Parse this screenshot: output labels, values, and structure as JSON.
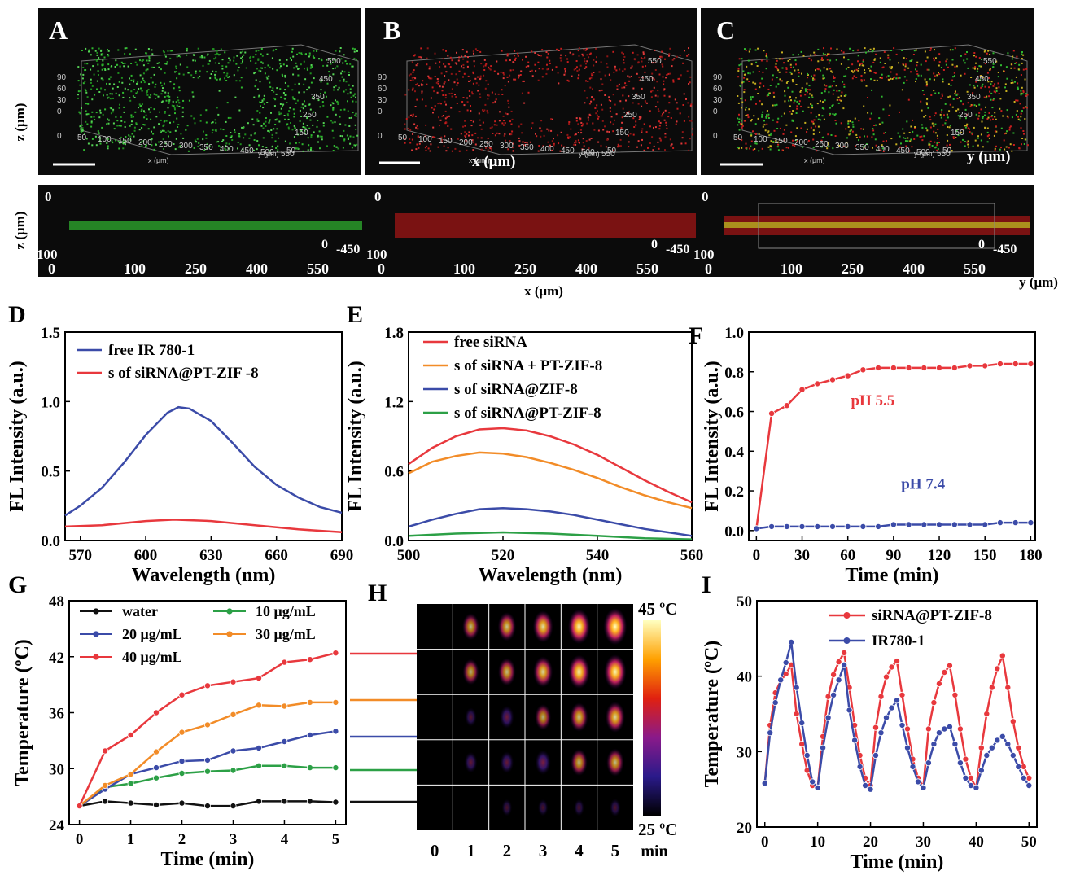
{
  "panels": {
    "A": {
      "letter": "A"
    },
    "B": {
      "letter": "B",
      "xaxis_label": "x (μm)"
    },
    "C": {
      "letter": "C",
      "yaxis_label": "y (μm)"
    },
    "top_row": {
      "z_label": "z (μm)",
      "z_ticks": [
        "90",
        "60",
        "30",
        "0"
      ],
      "x_ticks": [
        "0",
        "50",
        "100",
        "150",
        "200",
        "250",
        "300",
        "350",
        "400",
        "450",
        "500",
        "550"
      ],
      "y_ticks": [
        "50",
        "150",
        "250",
        "350",
        "450",
        "550"
      ],
      "x_unit": "x (μm)",
      "y_unit": "y (μm)"
    },
    "side_row": {
      "z_label": "z (μm)",
      "top_tick": "0",
      "bottom_tick": "100",
      "depth_tick": "0",
      "depth_end": "-450",
      "x_ticks": [
        "0",
        "100",
        "250",
        "400",
        "550"
      ],
      "x_label": "x (μm)",
      "y_label": "y (μm)"
    },
    "colorbar": {
      "max": "45 ºC",
      "min": "25 ºC"
    },
    "thermal_cols": [
      "0",
      "1",
      "2",
      "3",
      "4",
      "5"
    ],
    "thermal_unit": "min"
  },
  "colors": {
    "red": "#e8383d",
    "blue": "#3b4ba8",
    "orange": "#f28c28",
    "green": "#2ca046",
    "black": "#111111"
  },
  "chart_data": [
    {
      "id": "D",
      "type": "line",
      "letter": "D",
      "xlabel": "Wavelength (nm)",
      "ylabel": "FL Intensity (a.u.)",
      "xlim": [
        563,
        690
      ],
      "ylim": [
        0,
        1.5
      ],
      "xticks": [
        570,
        600,
        630,
        660,
        690
      ],
      "yticks": [
        0.0,
        0.5,
        1.0,
        1.5
      ],
      "series": [
        {
          "name": "free IR 780-1",
          "color": "#3b4ba8",
          "x": [
            563,
            570,
            580,
            590,
            600,
            610,
            615,
            620,
            630,
            640,
            650,
            660,
            670,
            680,
            690
          ],
          "y": [
            0.18,
            0.25,
            0.38,
            0.56,
            0.76,
            0.92,
            0.96,
            0.95,
            0.86,
            0.7,
            0.53,
            0.4,
            0.31,
            0.24,
            0.2
          ]
        },
        {
          "name": "s of siRNA@PT-ZIF -8",
          "color": "#e8383d",
          "x": [
            563,
            580,
            600,
            613,
            630,
            650,
            670,
            690
          ],
          "y": [
            0.1,
            0.11,
            0.14,
            0.15,
            0.14,
            0.11,
            0.08,
            0.06
          ]
        }
      ]
    },
    {
      "id": "E",
      "type": "line",
      "letter": "E",
      "xlabel": "Wavelength (nm)",
      "ylabel": "FL Intensity (a.u.)",
      "xlim": [
        500,
        560
      ],
      "ylim": [
        0,
        1.8
      ],
      "xticks": [
        500,
        520,
        540,
        560
      ],
      "yticks": [
        0.0,
        0.6,
        1.2,
        1.8
      ],
      "series": [
        {
          "name": "free siRNA",
          "color": "#e8383d",
          "x": [
            500,
            505,
            510,
            515,
            520,
            525,
            530,
            535,
            540,
            545,
            550,
            555,
            560
          ],
          "y": [
            0.66,
            0.8,
            0.9,
            0.96,
            0.97,
            0.95,
            0.9,
            0.83,
            0.74,
            0.63,
            0.52,
            0.42,
            0.33
          ]
        },
        {
          "name": "s of siRNA + PT-ZIF-8",
          "color": "#f28c28",
          "x": [
            500,
            505,
            510,
            515,
            520,
            525,
            530,
            535,
            540,
            545,
            550,
            555,
            560
          ],
          "y": [
            0.58,
            0.68,
            0.73,
            0.76,
            0.75,
            0.72,
            0.67,
            0.61,
            0.54,
            0.46,
            0.39,
            0.33,
            0.28
          ]
        },
        {
          "name": "s of siRNA@ZIF-8",
          "color": "#3b4ba8",
          "x": [
            500,
            505,
            510,
            515,
            520,
            525,
            530,
            535,
            540,
            545,
            550,
            555,
            560
          ],
          "y": [
            0.12,
            0.18,
            0.23,
            0.27,
            0.28,
            0.27,
            0.25,
            0.22,
            0.18,
            0.14,
            0.1,
            0.07,
            0.04
          ]
        },
        {
          "name": "s of siRNA@PT-ZIF-8",
          "color": "#2ca046",
          "x": [
            500,
            510,
            520,
            530,
            540,
            550,
            560
          ],
          "y": [
            0.04,
            0.06,
            0.07,
            0.06,
            0.04,
            0.02,
            0.01
          ]
        }
      ]
    },
    {
      "id": "F",
      "type": "line",
      "letter": "F",
      "xlabel": "Time (min)",
      "ylabel": "FL Intensity (a.u.)",
      "xlim": [
        -5,
        183
      ],
      "ylim": [
        -0.05,
        1.0
      ],
      "xticks": [
        0,
        30,
        60,
        90,
        120,
        150,
        180
      ],
      "yticks": [
        0.0,
        0.2,
        0.4,
        0.6,
        0.8,
        1.0
      ],
      "markers": true,
      "annotations": [
        {
          "text": "pH 5.5",
          "x": 62,
          "y": 0.63,
          "color": "#e8383d"
        },
        {
          "text": "pH 7.4",
          "x": 95,
          "y": 0.21,
          "color": "#3b4ba8"
        }
      ],
      "series": [
        {
          "name": "pH 5.5",
          "color": "#e8383d",
          "x": [
            0,
            10,
            20,
            30,
            40,
            50,
            60,
            70,
            80,
            90,
            100,
            110,
            120,
            130,
            140,
            150,
            160,
            170,
            180
          ],
          "y": [
            0.01,
            0.59,
            0.63,
            0.71,
            0.74,
            0.76,
            0.78,
            0.81,
            0.82,
            0.82,
            0.82,
            0.82,
            0.82,
            0.82,
            0.83,
            0.83,
            0.84,
            0.84,
            0.84
          ]
        },
        {
          "name": "pH 7.4",
          "color": "#3b4ba8",
          "x": [
            0,
            10,
            20,
            30,
            40,
            50,
            60,
            70,
            80,
            90,
            100,
            110,
            120,
            130,
            140,
            150,
            160,
            170,
            180
          ],
          "y": [
            0.01,
            0.02,
            0.02,
            0.02,
            0.02,
            0.02,
            0.02,
            0.02,
            0.02,
            0.03,
            0.03,
            0.03,
            0.03,
            0.03,
            0.03,
            0.03,
            0.04,
            0.04,
            0.04
          ]
        }
      ]
    },
    {
      "id": "G",
      "type": "line",
      "letter": "G",
      "xlabel": "Time (min)",
      "ylabel": "Temperature (ºC)",
      "xlim": [
        -0.2,
        5.2
      ],
      "ylim": [
        24,
        48
      ],
      "xticks": [
        0,
        1,
        2,
        3,
        4,
        5
      ],
      "yticks": [
        24,
        30,
        36,
        42,
        48
      ],
      "markers": true,
      "series": [
        {
          "name": "water",
          "color": "#111111",
          "x": [
            0,
            0.5,
            1,
            1.5,
            2,
            2.5,
            3,
            3.5,
            4,
            4.5,
            5
          ],
          "y": [
            26,
            26.5,
            26.3,
            26.1,
            26.3,
            26,
            26,
            26.5,
            26.5,
            26.5,
            26.4
          ]
        },
        {
          "name": "10 μg/mL",
          "color": "#2ca046",
          "x": [
            0,
            0.5,
            1,
            1.5,
            2,
            2.5,
            3,
            3.5,
            4,
            4.5,
            5
          ],
          "y": [
            26,
            28,
            28.4,
            29,
            29.5,
            29.7,
            29.8,
            30.3,
            30.3,
            30.1,
            30.1
          ]
        },
        {
          "name": "20 μg/mL",
          "color": "#3b4ba8",
          "x": [
            0,
            0.5,
            1,
            1.5,
            2,
            2.5,
            3,
            3.5,
            4,
            4.5,
            5
          ],
          "y": [
            26,
            27.8,
            29.4,
            30.1,
            30.8,
            30.9,
            31.9,
            32.2,
            32.9,
            33.6,
            34
          ]
        },
        {
          "name": "30 μg/mL",
          "color": "#f28c28",
          "x": [
            0,
            0.5,
            1,
            1.5,
            2,
            2.5,
            3,
            3.5,
            4,
            4.5,
            5
          ],
          "y": [
            26,
            28.2,
            29.4,
            31.8,
            33.9,
            34.7,
            35.8,
            36.8,
            36.7,
            37.1,
            37.1
          ]
        },
        {
          "name": "40 μg/mL",
          "color": "#e8383d",
          "x": [
            0,
            0.5,
            1,
            1.5,
            2,
            2.5,
            3,
            3.5,
            4,
            4.5,
            5
          ],
          "y": [
            26,
            31.9,
            33.6,
            36,
            37.9,
            38.9,
            39.3,
            39.7,
            41.4,
            41.7,
            42.4
          ]
        }
      ]
    },
    {
      "id": "I",
      "type": "line",
      "letter": "I",
      "xlabel": "Time (min)",
      "ylabel": "Temperature (ºC)",
      "xlim": [
        -1.5,
        51.5
      ],
      "ylim": [
        20,
        50
      ],
      "xticks": [
        0,
        10,
        20,
        30,
        40,
        50
      ],
      "yticks": [
        20,
        30,
        40,
        50
      ],
      "markers": true,
      "series": [
        {
          "name": "siRNA@PT-ZIF-8",
          "color": "#e8383d",
          "x": [
            0,
            1,
            2,
            3,
            4,
            5,
            6,
            7,
            8,
            9,
            10,
            11,
            12,
            13,
            14,
            15,
            16,
            17,
            18,
            19,
            20,
            21,
            22,
            23,
            24,
            25,
            26,
            27,
            28,
            29,
            30,
            31,
            32,
            33,
            34,
            35,
            36,
            37,
            38,
            39,
            40,
            41,
            42,
            43,
            44,
            45,
            46,
            47,
            48,
            49,
            50
          ],
          "y": [
            25.8,
            33.5,
            37.8,
            39.4,
            40.3,
            41.5,
            35,
            31,
            27.5,
            25.5,
            25.2,
            32,
            37.3,
            40.2,
            41.9,
            43.1,
            38.5,
            33.5,
            29.5,
            26.5,
            25.5,
            33.2,
            37.3,
            39.9,
            41.2,
            42,
            37.5,
            33,
            29,
            26.5,
            25.3,
            33,
            36.5,
            39,
            40.5,
            41.4,
            37.5,
            33,
            29,
            26.5,
            25.2,
            30.5,
            35,
            38.5,
            41,
            42.7,
            38.5,
            34,
            30.5,
            28,
            26.5
          ]
        },
        {
          "name": "IR780-1",
          "color": "#3b4ba8",
          "x": [
            0,
            1,
            2,
            3,
            4,
            5,
            6,
            7,
            8,
            9,
            10,
            11,
            12,
            13,
            14,
            15,
            16,
            17,
            18,
            19,
            20,
            21,
            22,
            23,
            24,
            25,
            26,
            27,
            28,
            29,
            30,
            31,
            32,
            33,
            34,
            35,
            36,
            37,
            38,
            39,
            40,
            41,
            42,
            43,
            44,
            45,
            46,
            47,
            48,
            49,
            50
          ],
          "y": [
            25.8,
            32.5,
            36.5,
            39.5,
            41.8,
            44.5,
            38.5,
            33.8,
            29.5,
            26,
            25.2,
            30.5,
            34.5,
            37.5,
            39.5,
            41.5,
            35.5,
            31.5,
            28,
            25.5,
            25,
            29.5,
            32.5,
            34.5,
            35.8,
            36.8,
            33.5,
            30.5,
            28,
            26,
            25.2,
            28.5,
            31,
            32.5,
            33,
            33.3,
            31,
            28.5,
            26.5,
            25.5,
            25.2,
            27.5,
            29.5,
            30.5,
            31.5,
            32,
            31,
            29.5,
            28,
            26.5,
            25.5
          ]
        }
      ]
    }
  ]
}
